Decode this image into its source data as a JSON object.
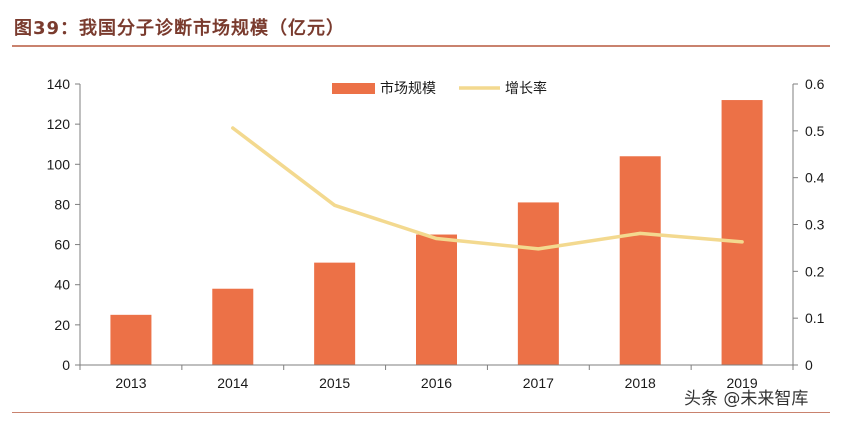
{
  "figure_title": "图39：我国分子诊断市场规模（亿元）",
  "watermark": "头条 @未来智库",
  "colors": {
    "bar": "#ec7147",
    "line": "#f3d98f",
    "axis": "#7f7f7f",
    "title": "#7a3b2e",
    "rule": "#c9826e"
  },
  "chart_data": {
    "type": "bar",
    "categories": [
      "2013",
      "2014",
      "2015",
      "2016",
      "2017",
      "2018",
      "2019"
    ],
    "series": [
      {
        "name": "市场规模",
        "type": "bar",
        "axis": "left",
        "values": [
          25,
          38,
          51,
          65,
          81,
          104,
          132
        ]
      },
      {
        "name": "增长率",
        "type": "line",
        "axis": "right",
        "values": [
          null,
          0.506,
          0.341,
          0.27,
          0.248,
          0.281,
          0.263
        ]
      }
    ],
    "y_left": {
      "ylim": [
        0,
        140
      ],
      "ticks": [
        "0",
        "20",
        "40",
        "60",
        "80",
        "100",
        "120",
        "140"
      ]
    },
    "y_right": {
      "ylim": [
        0,
        0.6
      ],
      "ticks": [
        "0",
        "0.1",
        "0.2",
        "0.3",
        "0.4",
        "0.5",
        "0.6"
      ]
    },
    "legend_position": "top-center",
    "grid": false
  }
}
